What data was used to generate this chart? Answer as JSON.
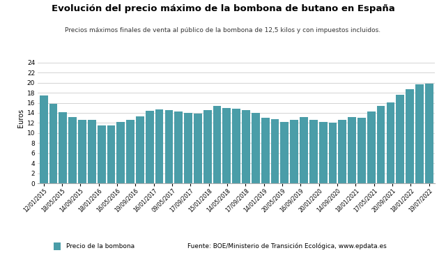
{
  "title": "Evolución del precio máximo de la bombona de butano en España",
  "subtitle": "Precios máximos finales de venta al público de la bombona de 12,5 kilos y con impuestos incluidos.",
  "ylabel": "Euros",
  "legend_label": "Precio de la bombona",
  "source": "Fuente: BOE/Ministerio de Transición Ecológica, www.epdata.es",
  "bar_color": "#4a9da8",
  "background_color": "#ffffff",
  "grid_color": "#cccccc",
  "ylim": [
    0,
    26
  ],
  "yticks": [
    0,
    2,
    4,
    6,
    8,
    10,
    12,
    14,
    16,
    18,
    20,
    22,
    24
  ],
  "values": [
    17.4,
    15.8,
    14.1,
    13.2,
    12.6,
    12.55,
    11.55,
    11.55,
    12.2,
    12.65,
    13.3,
    14.35,
    14.75,
    14.55,
    14.3,
    14.0,
    13.9,
    14.55,
    15.35,
    15.0,
    14.8,
    14.55,
    14.0,
    13.05,
    12.7,
    12.15,
    12.65,
    13.2,
    12.6,
    12.2,
    12.05,
    12.55,
    13.1,
    13.0,
    14.25,
    15.35,
    16.05,
    17.55,
    18.65,
    19.6,
    19.75
  ],
  "tick_labels": [
    "12/01/2015",
    "18/05/2015",
    "14/09/2015",
    "18/01/2016",
    "16/05/2016",
    "19/09/2016",
    "16/01/2017",
    "09/05/2017",
    "17/09/2017",
    "15/01/2018",
    "14/05/2018",
    "17/09/2018",
    "14/01/2019",
    "20/05/2019",
    "16/09/2019",
    "20/01/2020",
    "14/09/2020",
    "18/01/2021",
    "17/05/2021",
    "20/09/2021",
    "18/01/2022",
    "19/07/2022"
  ]
}
